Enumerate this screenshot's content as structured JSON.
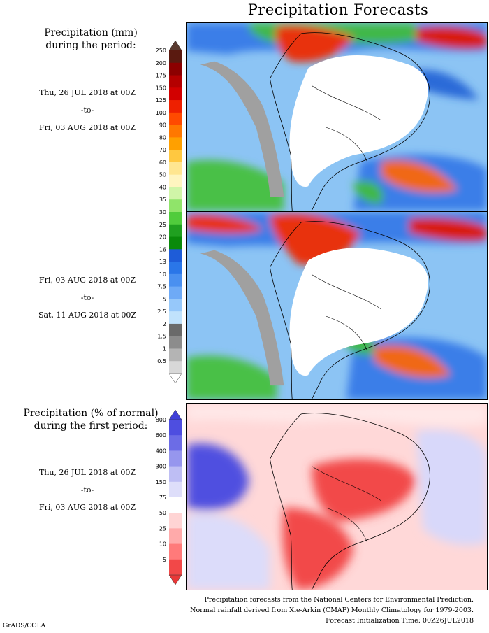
{
  "title": "Precipitation Forecasts",
  "top_header": [
    "Precipitation (mm)",
    "during the period:"
  ],
  "period1": {
    "start": "Thu, 26 JUL 2018 at 00Z",
    "to": "-to-",
    "end": "Fri, 03 AUG 2018 at 00Z"
  },
  "period2": {
    "start": "Fri, 03 AUG 2018 at 00Z",
    "to": "-to-",
    "end": "Sat, 11 AUG 2018 at 00Z"
  },
  "bottom_header": [
    "Precipitation (% of normal)",
    "during the first period:"
  ],
  "period3": {
    "start": "Thu, 26 JUL 2018 at 00Z",
    "to": "-to-",
    "end": "Fri, 03 AUG 2018 at 00Z"
  },
  "mm_scale": {
    "labels": [
      "250",
      "200",
      "175",
      "150",
      "125",
      "100",
      "90",
      "80",
      "70",
      "60",
      "50",
      "40",
      "35",
      "30",
      "25",
      "20",
      "16",
      "13",
      "10",
      "7.5",
      "5",
      "2.5",
      "2",
      "1.5",
      "1",
      "0.5"
    ],
    "colors": [
      "#5a1a10",
      "#8c0000",
      "#b40000",
      "#d20000",
      "#ee2000",
      "#ff4a00",
      "#ff7800",
      "#ffa000",
      "#ffc840",
      "#ffe690",
      "#fff5c0",
      "#d0f5a8",
      "#90e46a",
      "#50cc3c",
      "#20a020",
      "#0a8a0a",
      "#1e5cd8",
      "#2a76e8",
      "#4a90f0",
      "#6eaaf6",
      "#96c8fa",
      "#c0e2fc",
      "#6a6a6a",
      "#8c8c8c",
      "#b4b4b4",
      "#d8d8d8"
    ],
    "top_arrow_color": "#5a3a30",
    "bottom_arrow_color": "#ffffff"
  },
  "pct_scale": {
    "labels": [
      "800",
      "600",
      "400",
      "300",
      "150",
      "75",
      "50",
      "25",
      "10",
      "5"
    ],
    "colors": [
      "#4e4ee0",
      "#6c6ce6",
      "#9696ee",
      "#bebef4",
      "#dedefa",
      "#ffffff",
      "#ffd4d4",
      "#ffaaaa",
      "#ff7a7a",
      "#f24848"
    ],
    "top_arrow_color": "#4040d8",
    "bottom_arrow_color": "#e83838"
  },
  "footer": [
    "Precipitation forecasts from the National Centers for Environmental Prediction.",
    "Normal rainfall derived from Xie-Arkin (CMAP) Monthly Climatology for 1979-2003.",
    "Forecast Initialization Time: 00Z26JUL2018"
  ],
  "credit": "GrADS/COLA"
}
